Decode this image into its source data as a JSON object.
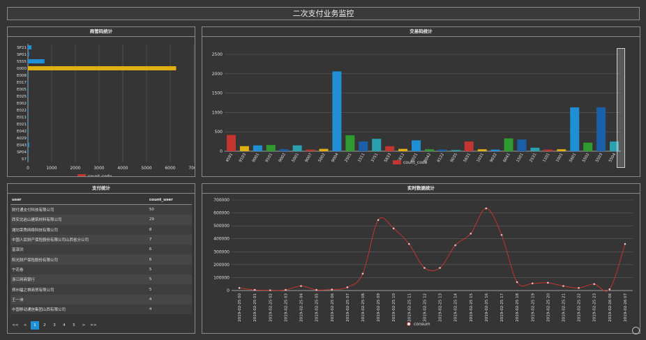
{
  "page": {
    "title": "二次支付业务监控"
  },
  "panels": {
    "response": {
      "title": "商管码统计"
    },
    "trade": {
      "title": "交易码统计"
    },
    "payment": {
      "title": "支付统计"
    },
    "realtime": {
      "title": "实时数据统计"
    }
  },
  "chart_data": [
    {
      "type": "bar",
      "orientation": "horizontal",
      "categories": [
        "SP21",
        "SP01",
        "5555",
        "0000",
        "E008",
        "E017",
        "E005",
        "E025",
        "E002",
        "E022",
        "E011",
        "E021",
        "E042",
        "A029",
        "E043",
        "SP04",
        "57"
      ],
      "series": [
        {
          "name": "count_code",
          "values": [
            150,
            50,
            700,
            6250,
            20,
            20,
            30,
            20,
            20,
            20,
            20,
            20,
            20,
            20,
            60,
            30,
            20
          ]
        }
      ],
      "bar_colors": [
        "#1f8fd6",
        "#1f8fd6",
        "#1f8fd6",
        "#e0b010",
        "#1f8fd6",
        "#1f8fd6",
        "#1f8fd6",
        "#1f8fd6",
        "#1f8fd6",
        "#1f8fd6",
        "#1f8fd6",
        "#1f8fd6",
        "#1f8fd6",
        "#1f8fd6",
        "#1f8fd6",
        "#1f8fd6",
        "#1f8fd6"
      ],
      "xlim": [
        0,
        7000
      ],
      "xticks": [
        "0",
        "1000",
        "2000",
        "3000",
        "4000",
        "5000",
        "6000",
        "7000"
      ],
      "legend": {
        "label": "count_code",
        "color": "#c23531",
        "position": "bottom"
      },
      "grid": true
    },
    {
      "type": "bar",
      "categories": [
        "4591",
        "9103",
        "9001",
        "9101",
        "9002",
        "5001",
        "9007",
        "5002",
        "9004",
        "2501",
        "1511",
        "3751",
        "5833",
        "5812",
        "6021",
        "6042",
        "6122",
        "9035",
        "5631",
        "1031",
        "9032",
        "6041",
        "1501",
        "2531",
        "1101",
        "1001",
        "5601",
        "5502",
        "5503",
        "5504"
      ],
      "series": [
        {
          "name": "count_code",
          "values": [
            420,
            130,
            150,
            160,
            50,
            150,
            40,
            60,
            2060,
            410,
            250,
            320,
            130,
            60,
            280,
            50,
            40,
            30,
            250,
            50,
            40,
            330,
            300,
            90,
            40,
            50,
            1130,
            220,
            1130,
            250
          ]
        }
      ],
      "bar_colors": [
        "#c23531",
        "#e0b010",
        "#1f8fd6",
        "#2f9a2f",
        "#1a5fa8",
        "#2aa0b0",
        "#c23531",
        "#e0b010",
        "#1f8fd6",
        "#2f9a2f",
        "#1a5fa8",
        "#2aa0b0",
        "#c23531",
        "#e0b010",
        "#1f8fd6",
        "#2f9a2f",
        "#1a5fa8",
        "#2aa0b0",
        "#c23531",
        "#e0b010",
        "#1f8fd6",
        "#2f9a2f",
        "#1a5fa8",
        "#2aa0b0",
        "#c23531",
        "#e0b010",
        "#1f8fd6",
        "#2f9a2f",
        "#1a5fa8",
        "#2aa0b0"
      ],
      "ylim": [
        0,
        2500
      ],
      "yticks": [
        "0",
        "500",
        "1000",
        "1500",
        "2000",
        "2500"
      ],
      "legend": {
        "label": "count_code",
        "color": "#c23531",
        "position": "bottom"
      },
      "grid": true
    },
    {
      "type": "line",
      "x": [
        "2019-02-25 00",
        "2019-02-25 01",
        "2019-02-25 02",
        "2019-02-25 03",
        "2019-02-25 04",
        "2019-02-25 05",
        "2019-02-25 06",
        "2019-02-25 07",
        "2019-02-25 08",
        "2019-02-25 09",
        "2019-02-25 10",
        "2019-02-25 11",
        "2019-02-25 12",
        "2019-02-25 13",
        "2019-02-25 14",
        "2019-02-25 15",
        "2019-02-25 16",
        "2019-02-25 17",
        "2019-02-25 18",
        "2019-02-25 19",
        "2019-02-25 20",
        "2019-02-25 21",
        "2019-02-25 22",
        "2019-02-25 23",
        "2019-02-26 06",
        "2019-02-26 07"
      ],
      "series": [
        {
          "name": "consum",
          "values": [
            20000,
            5000,
            2000,
            5000,
            35000,
            5000,
            8000,
            25000,
            130000,
            545000,
            480000,
            360000,
            175000,
            175000,
            350000,
            440000,
            635000,
            430000,
            65000,
            55000,
            60000,
            35000,
            20000,
            50000,
            10000,
            360000
          ]
        }
      ],
      "line_color": "#c23531",
      "ylim": [
        0,
        700000
      ],
      "yticks": [
        "0",
        "100000",
        "200000",
        "300000",
        "400000",
        "500000",
        "600000",
        "700000"
      ],
      "legend": {
        "label": "consum",
        "color": "#c23531",
        "position": "bottom"
      },
      "grid": true
    }
  ],
  "payment_table": {
    "columns": [
      "user",
      "count_user"
    ],
    "rows": [
      [
        "财付通支付科技有限公司",
        "50"
      ],
      [
        "西安北岩山建筑材料有限公司",
        "29"
      ],
      [
        "潍坊荣秀网络科技有限公司",
        "8"
      ],
      [
        "中国人民财产保险股份有限公司山西省分公司",
        "7"
      ],
      [
        "富滇洪",
        "6"
      ],
      [
        "阳光财产保险股份有限公司",
        "6"
      ],
      [
        "宁花卷",
        "5"
      ],
      [
        "浙江网商银行",
        "5"
      ],
      [
        "郑州福之祺商贸有限公司",
        "5"
      ],
      [
        "王一洲",
        "4"
      ],
      [
        "中国移动通信集团山西有限公司",
        "4"
      ]
    ]
  },
  "pager": {
    "first": "<<",
    "prev": "<",
    "pages": [
      "1",
      "2",
      "3",
      "4",
      "5"
    ],
    "current": "1",
    "next": ">",
    "last": ">>"
  }
}
